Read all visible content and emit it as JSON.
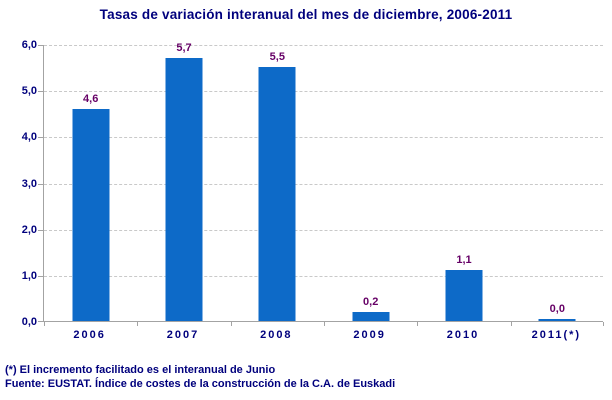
{
  "title": "Tasas de variación interanual del mes de diciembre, 2006-2011",
  "chart_data": {
    "type": "bar",
    "title": "Tasas de variación interanual del mes de diciembre, 2006-2011",
    "categories": [
      "2006",
      "2007",
      "2008",
      "2009",
      "2010",
      "2011(*)"
    ],
    "values": [
      4.6,
      5.7,
      5.5,
      0.2,
      1.1,
      0.0
    ],
    "value_labels": [
      "4,6",
      "5,7",
      "5,5",
      "0,2",
      "1,1",
      "0,0"
    ],
    "xlabel": "",
    "ylabel": "",
    "ylim": [
      0,
      6
    ],
    "y_tick_step": 1,
    "y_tick_labels": [
      "0,0",
      "1,0",
      "2,0",
      "3,0",
      "4,0",
      "5,0",
      "6,0"
    ],
    "grid": true,
    "legend": "none",
    "bar_color": "#0D6AC8",
    "value_label_color": "#660066",
    "axis_text_color": "#00007D",
    "gridline_color": "#C9C9C9",
    "axis_line_color": "#A3A3A3"
  },
  "footnotes": {
    "line1": "(*) El incremento facilitado es el interanual de Junio",
    "line2": "Fuente: EUSTAT. Índice de costes de la construcción de la C.A. de Euskadi"
  }
}
